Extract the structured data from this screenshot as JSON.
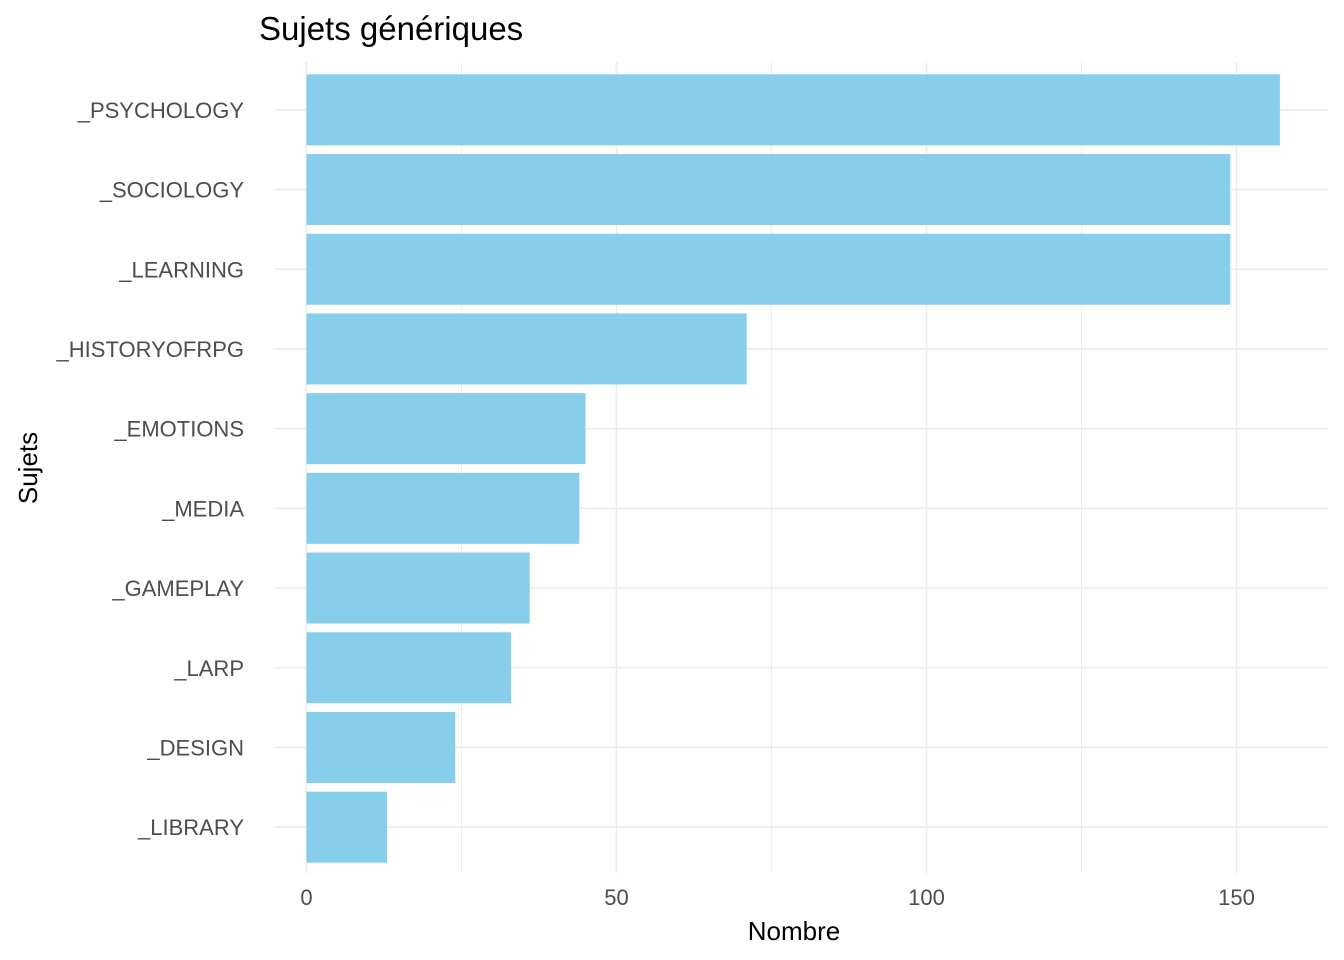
{
  "chart_data": {
    "type": "bar",
    "orientation": "horizontal",
    "title": "Sujets génériques",
    "xlabel": "Nombre",
    "ylabel": "Sujets",
    "categories": [
      "_PSYCHOLOGY",
      "_SOCIOLOGY",
      "_LEARNING",
      "_HISTORYOFRPG",
      "_EMOTIONS",
      "_MEDIA",
      "_GAMEPLAY",
      "_LARP",
      "_DESIGN",
      "_LIBRARY"
    ],
    "values": [
      157,
      149,
      149,
      71,
      45,
      44,
      36,
      33,
      24,
      13
    ],
    "xlim": [
      0,
      165
    ],
    "xticks": [
      0,
      50,
      100,
      150
    ],
    "xtick_labels": [
      "0",
      "50",
      "100",
      "150"
    ],
    "grid": true,
    "bar_color": "#87CEEB",
    "grid_color": "#EBEBEB"
  }
}
